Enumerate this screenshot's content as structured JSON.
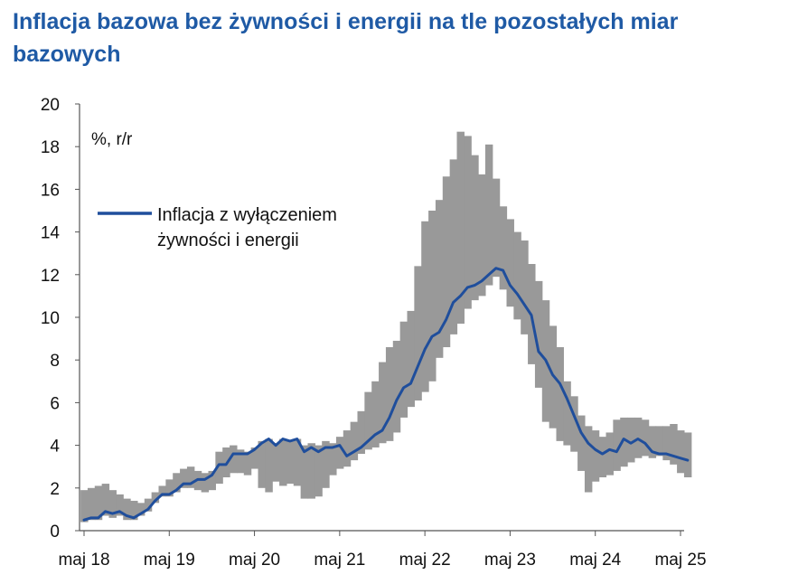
{
  "chart_data": {
    "type": "line",
    "title": "Inflacja bazowa bez żywności i energii na tle pozostałych miar bazowych",
    "ylabel": "%, r/r",
    "xlabel": "",
    "ylim": [
      0,
      20
    ],
    "yticks": [
      0,
      2,
      4,
      6,
      8,
      10,
      12,
      14,
      16,
      18,
      20
    ],
    "xticks": [
      {
        "label": "maj 18",
        "date": "2018-05"
      },
      {
        "label": "maj 19",
        "date": "2019-05"
      },
      {
        "label": "maj 20",
        "date": "2020-05"
      },
      {
        "label": "maj 21",
        "date": "2021-05"
      },
      {
        "label": "maj 22",
        "date": "2022-05"
      },
      {
        "label": "maj 23",
        "date": "2023-05"
      },
      {
        "label": "maj 24",
        "date": "2024-05"
      },
      {
        "label": "maj 25",
        "date": "2025-05"
      }
    ],
    "grid": false,
    "legend": "top-left",
    "x": [
      "2018-05",
      "2018-06",
      "2018-07",
      "2018-08",
      "2018-09",
      "2018-10",
      "2018-11",
      "2018-12",
      "2019-01",
      "2019-02",
      "2019-03",
      "2019-04",
      "2019-05",
      "2019-06",
      "2019-07",
      "2019-08",
      "2019-09",
      "2019-10",
      "2019-11",
      "2019-12",
      "2020-01",
      "2020-02",
      "2020-03",
      "2020-04",
      "2020-05",
      "2020-06",
      "2020-07",
      "2020-08",
      "2020-09",
      "2020-10",
      "2020-11",
      "2020-12",
      "2021-01",
      "2021-02",
      "2021-03",
      "2021-04",
      "2021-05",
      "2021-06",
      "2021-07",
      "2021-08",
      "2021-09",
      "2021-10",
      "2021-11",
      "2021-12",
      "2022-01",
      "2022-02",
      "2022-03",
      "2022-04",
      "2022-05",
      "2022-06",
      "2022-07",
      "2022-08",
      "2022-09",
      "2022-10",
      "2022-11",
      "2022-12",
      "2023-01",
      "2023-02",
      "2023-03",
      "2023-04",
      "2023-05",
      "2023-06",
      "2023-07",
      "2023-08",
      "2023-09",
      "2023-10",
      "2023-11",
      "2023-12",
      "2024-01",
      "2024-02",
      "2024-03",
      "2024-04",
      "2024-05",
      "2024-06",
      "2024-07",
      "2024-08",
      "2024-09",
      "2024-10",
      "2024-11",
      "2024-12",
      "2025-01",
      "2025-02",
      "2025-03",
      "2025-04",
      "2025-05",
      "2025-06"
    ],
    "series": [
      {
        "name": "Inflacja z wyłączeniem żywności i energii",
        "color": "#1f4e9c",
        "type": "line",
        "values": [
          0.5,
          0.6,
          0.6,
          0.9,
          0.8,
          0.9,
          0.7,
          0.6,
          0.8,
          1.0,
          1.4,
          1.7,
          1.7,
          1.9,
          2.2,
          2.2,
          2.4,
          2.4,
          2.6,
          3.1,
          3.1,
          3.6,
          3.6,
          3.6,
          3.8,
          4.1,
          4.3,
          4.0,
          4.3,
          4.2,
          4.3,
          3.7,
          3.9,
          3.7,
          3.9,
          3.9,
          4.0,
          3.5,
          3.7,
          3.9,
          4.2,
          4.5,
          4.7,
          5.3,
          6.1,
          6.7,
          6.9,
          7.7,
          8.5,
          9.1,
          9.3,
          9.9,
          10.7,
          11.0,
          11.4,
          11.5,
          11.7,
          12.0,
          12.3,
          12.2,
          11.5,
          11.1,
          10.6,
          10.1,
          8.4,
          8.0,
          7.3,
          6.9,
          6.2,
          5.4,
          4.6,
          4.1,
          3.8,
          3.6,
          3.8,
          3.7,
          4.3,
          4.1,
          4.3,
          4.1,
          3.7,
          3.6,
          3.6,
          3.5,
          3.4,
          3.3
        ]
      },
      {
        "name": "",
        "color": "#999999",
        "type": "range",
        "low": [
          0.4,
          0.5,
          0.5,
          0.7,
          0.6,
          0.7,
          0.5,
          0.5,
          0.7,
          0.9,
          1.3,
          1.6,
          1.6,
          1.8,
          2.0,
          2.0,
          1.9,
          1.8,
          1.9,
          2.2,
          2.5,
          2.7,
          2.7,
          2.6,
          2.9,
          2.0,
          1.8,
          2.3,
          2.1,
          2.2,
          2.1,
          1.5,
          1.5,
          1.6,
          2.0,
          2.6,
          2.9,
          3.0,
          3.3,
          3.6,
          3.8,
          3.9,
          4.1,
          4.2,
          4.6,
          5.3,
          5.8,
          6.1,
          6.5,
          7.0,
          8.1,
          8.6,
          9.2,
          9.7,
          10.4,
          10.8,
          11.0,
          11.5,
          11.9,
          11.3,
          10.5,
          9.9,
          9.2,
          7.8,
          6.7,
          5.1,
          4.8,
          4.2,
          4.0,
          3.7,
          2.8,
          1.8,
          2.3,
          2.5,
          2.6,
          2.8,
          3.0,
          3.2,
          3.4,
          3.5,
          3.4,
          3.5,
          3.3,
          3.1,
          2.7,
          2.5
        ],
        "high": [
          1.9,
          2.0,
          2.1,
          2.2,
          1.9,
          1.7,
          1.5,
          1.4,
          1.3,
          1.5,
          1.8,
          2.1,
          2.4,
          2.7,
          2.9,
          3.0,
          2.8,
          2.7,
          2.8,
          3.7,
          3.9,
          4.0,
          3.8,
          3.7,
          3.9,
          4.2,
          4.3,
          4.1,
          4.3,
          4.2,
          4.3,
          4.0,
          4.1,
          4.0,
          4.2,
          4.1,
          4.4,
          4.7,
          5.1,
          5.6,
          6.5,
          7.0,
          7.9,
          8.6,
          8.9,
          9.8,
          10.3,
          12.4,
          14.5,
          15.0,
          15.5,
          16.6,
          17.4,
          18.7,
          18.5,
          17.6,
          16.7,
          18.1,
          16.5,
          15.2,
          14.6,
          14.0,
          13.6,
          12.5,
          11.7,
          10.8,
          9.6,
          8.6,
          7.0,
          6.3,
          5.4,
          4.9,
          4.7,
          4.4,
          4.6,
          5.2,
          5.3,
          5.3,
          5.3,
          5.2,
          4.9,
          4.9,
          4.9,
          5.0,
          4.7,
          4.6
        ]
      }
    ]
  },
  "legend_lines": [
    "Inflacja z wyłączeniem",
    "żywności i energii"
  ]
}
